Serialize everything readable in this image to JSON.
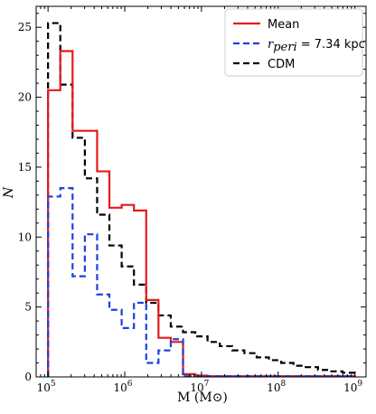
{
  "chart_data": {
    "type": "histogram-step",
    "xlabel": "M (M⊙)",
    "ylabel": "N",
    "xscale": "log",
    "xlim": [
      70000,
      1400000000
    ],
    "ylim": [
      0,
      26.5
    ],
    "yticks": [
      0,
      5,
      10,
      15,
      20,
      25
    ],
    "xtick_labels": [
      {
        "base": "10",
        "exp": "5",
        "value": 100000
      },
      {
        "base": "10",
        "exp": "6",
        "value": 1000000
      },
      {
        "base": "10",
        "exp": "7",
        "value": 10000000
      },
      {
        "base": "10",
        "exp": "8",
        "value": 100000000
      },
      {
        "base": "10",
        "exp": "9",
        "value": 1000000000
      }
    ],
    "legend_position": "top-right",
    "bin_edges_log10": [
      5.0,
      5.16,
      5.32,
      5.48,
      5.64,
      5.8,
      5.96,
      6.12,
      6.28,
      6.44,
      6.6,
      6.76,
      6.92,
      7.08,
      7.24,
      7.4,
      7.56,
      7.72,
      7.88,
      8.04,
      8.2,
      8.36,
      8.52,
      8.68,
      8.84,
      9.0
    ],
    "series": [
      {
        "name": "Mean",
        "color": "#e41a1c",
        "dash": "solid",
        "values": [
          20.5,
          23.3,
          17.6,
          17.6,
          14.7,
          12.1,
          12.3,
          11.9,
          5.5,
          2.8,
          2.5,
          0.2,
          0.1,
          0.05,
          0.05,
          0.05,
          0.05,
          0.05,
          0.05,
          0.05,
          0.05,
          0.05,
          0.05,
          0.05,
          0.05
        ]
      },
      {
        "name_math": "r",
        "name_sub": "peri",
        "name_rest": " = 7.34 kpc",
        "color": "#1f3fe0",
        "dash": "dashed",
        "values": [
          12.9,
          13.5,
          7.2,
          10.2,
          5.9,
          4.8,
          3.5,
          5.3,
          1.0,
          1.9,
          2.7,
          0.05,
          0.05,
          0.05,
          0.05,
          0.05,
          0.05,
          0.05,
          0.05,
          0.05,
          0.05,
          0.05,
          0.05,
          0.05,
          0.05
        ]
      },
      {
        "name": "CDM",
        "color": "#000000",
        "dash": "dashed",
        "values": [
          25.3,
          20.9,
          17.1,
          14.2,
          11.6,
          9.4,
          7.9,
          6.6,
          5.3,
          4.4,
          3.6,
          3.2,
          2.9,
          2.5,
          2.2,
          1.9,
          1.7,
          1.4,
          1.2,
          1.0,
          0.8,
          0.7,
          0.5,
          0.4,
          0.3
        ]
      }
    ]
  }
}
